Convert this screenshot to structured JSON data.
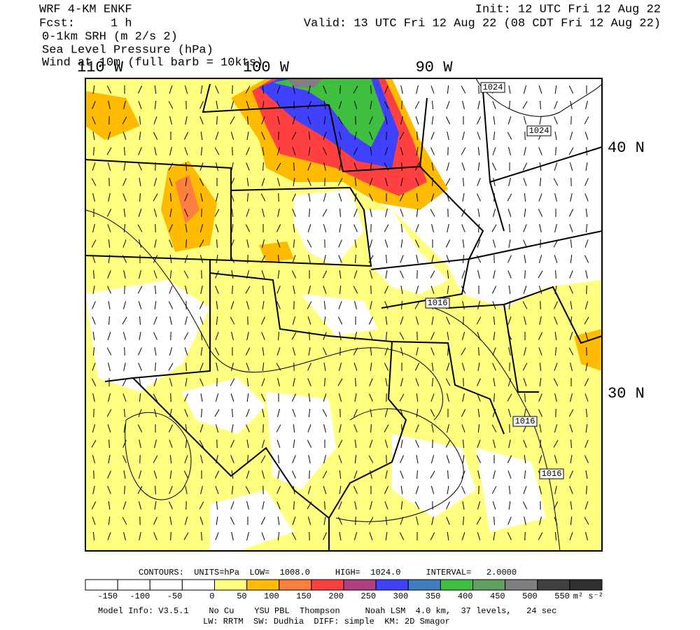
{
  "header": {
    "model": "WRF 4-KM ENKF",
    "forecast": "Fcst:     1 h",
    "field1": "0-1km SRH (m 2/s 2)",
    "field2": "Sea Level Pressure (hPa)",
    "field3": "Wind at 10m (full barb = 10kts)",
    "init": "Init: 12 UTC Fri 12 Aug 22",
    "valid": "Valid: 13 UTC Fri 12 Aug 22 (08 CDT Fri 12 Aug 22)"
  },
  "map": {
    "longitudes": [
      "110 W",
      "100 W",
      "90 W"
    ],
    "latitudes": [
      "40 N",
      "30 N"
    ],
    "contour_labels": [
      "1024",
      "1024",
      "1016",
      "1016",
      "1016"
    ]
  },
  "colorbar": {
    "colors": [
      "#ffffff",
      "#ffffff",
      "#ffffff",
      "#ffffff",
      "#ffff80",
      "#ffbb00",
      "#ff7f3f",
      "#ff4040",
      "#b03f7f",
      "#4040ff",
      "#3f7fbf",
      "#3fbf3f",
      "#5f9f5f",
      "#7f7f7f",
      "#404040",
      "#303030"
    ],
    "labels": [
      "-150",
      "-100",
      "-50",
      "0",
      "50",
      "100",
      "150",
      "200",
      "250",
      "300",
      "350",
      "400",
      "450",
      "500",
      "550"
    ],
    "units": "m² s⁻²"
  },
  "footer": {
    "contours": "CONTOURS:  UNITS=hPa  LOW=  1008.0     HIGH=  1024.0     INTERVAL=   2.0000",
    "model_info": "Model Info: V3.5.1    No Cu    YSU PBL  Thompson     Noah LSM  4.0 km,  37 levels,   24 sec",
    "physics": "LW: RRTM  SW: Dudhia  DIFF: simple  KM: 2D Smagor"
  }
}
